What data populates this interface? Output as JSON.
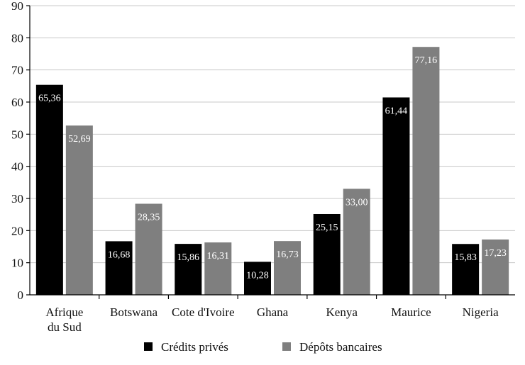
{
  "chart_data": {
    "type": "bar",
    "categories": [
      [
        "Afrique",
        "du Sud"
      ],
      [
        "Botswana"
      ],
      [
        "Cote d'Ivoire"
      ],
      [
        "Ghana"
      ],
      [
        "Kenya"
      ],
      [
        "Maurice"
      ],
      [
        "Nigeria"
      ]
    ],
    "series": [
      {
        "name": "Crédits privés",
        "color": "#000000",
        "values": [
          65.36,
          16.68,
          15.86,
          10.28,
          25.15,
          61.44,
          15.83
        ],
        "labels": [
          "65,36",
          "16,68",
          "15,86",
          "10,28",
          "25,15",
          "61,44",
          "15,83"
        ]
      },
      {
        "name": "Dépôts bancaires",
        "color": "#7f7f7f",
        "values": [
          52.69,
          28.35,
          16.31,
          16.73,
          33.0,
          77.16,
          17.23
        ],
        "labels": [
          "52,69",
          "28,35",
          "16,31",
          "16,73",
          "33,00",
          "77,16",
          "17,23"
        ]
      }
    ],
    "title": "",
    "xlabel": "",
    "ylabel": "",
    "ylim": [
      0,
      90
    ],
    "yticks": [
      0,
      10,
      20,
      30,
      40,
      50,
      60,
      70,
      80,
      90
    ],
    "grid": true,
    "legend_position": "bottom"
  }
}
